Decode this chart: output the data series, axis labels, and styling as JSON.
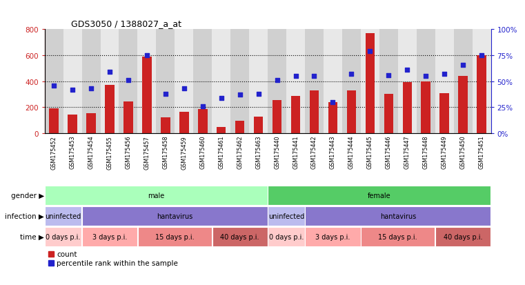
{
  "title": "GDS3050 / 1388027_a_at",
  "samples": [
    "GSM175452",
    "GSM175453",
    "GSM175454",
    "GSM175455",
    "GSM175456",
    "GSM175457",
    "GSM175458",
    "GSM175459",
    "GSM175460",
    "GSM175461",
    "GSM175462",
    "GSM175463",
    "GSM175440",
    "GSM175441",
    "GSM175442",
    "GSM175443",
    "GSM175444",
    "GSM175445",
    "GSM175446",
    "GSM175447",
    "GSM175448",
    "GSM175449",
    "GSM175450",
    "GSM175451"
  ],
  "counts": [
    190,
    145,
    155,
    370,
    245,
    590,
    120,
    165,
    185,
    50,
    95,
    125,
    255,
    285,
    330,
    240,
    330,
    770,
    305,
    395,
    400,
    310,
    440,
    600
  ],
  "percentiles": [
    46,
    42,
    43,
    59,
    51,
    75,
    38,
    43,
    26,
    34,
    37,
    38,
    51,
    55,
    55,
    30,
    57,
    79,
    56,
    61,
    55,
    57,
    66,
    75
  ],
  "bar_color": "#cc2222",
  "dot_color": "#2222cc",
  "left_ylim": [
    0,
    800
  ],
  "right_ylim": [
    0,
    100
  ],
  "left_yticks": [
    0,
    200,
    400,
    600,
    800
  ],
  "right_yticks": [
    0,
    25,
    50,
    75,
    100
  ],
  "right_yticklabels": [
    "0%",
    "25%",
    "50%",
    "75%",
    "100%"
  ],
  "grid_lines": [
    200,
    400,
    600
  ],
  "bg_color": "#e0e0e0",
  "col_bg_even": "#d0d0d0",
  "col_bg_odd": "#e8e8e8",
  "gender_segs": [
    {
      "start": 0,
      "end": 12,
      "color": "#aaffbb",
      "label": "male"
    },
    {
      "start": 12,
      "end": 24,
      "color": "#55cc66",
      "label": "female"
    }
  ],
  "infection_segs": [
    {
      "start": 0,
      "end": 2,
      "color": "#bbbbee",
      "label": "uninfected"
    },
    {
      "start": 2,
      "end": 12,
      "color": "#8877cc",
      "label": "hantavirus"
    },
    {
      "start": 12,
      "end": 14,
      "color": "#bbbbee",
      "label": "uninfected"
    },
    {
      "start": 14,
      "end": 24,
      "color": "#8877cc",
      "label": "hantavirus"
    }
  ],
  "time_segs": [
    {
      "start": 0,
      "end": 2,
      "label": "0 days p.i.",
      "color": "#ffcccc"
    },
    {
      "start": 2,
      "end": 5,
      "label": "3 days p.i.",
      "color": "#ffaaaa"
    },
    {
      "start": 5,
      "end": 9,
      "label": "15 days p.i.",
      "color": "#ee8888"
    },
    {
      "start": 9,
      "end": 12,
      "label": "40 days p.i.",
      "color": "#cc6666"
    },
    {
      "start": 12,
      "end": 14,
      "label": "0 days p.i.",
      "color": "#ffcccc"
    },
    {
      "start": 14,
      "end": 17,
      "label": "3 days p.i.",
      "color": "#ffaaaa"
    },
    {
      "start": 17,
      "end": 21,
      "label": "15 days p.i.",
      "color": "#ee8888"
    },
    {
      "start": 21,
      "end": 24,
      "label": "40 days p.i.",
      "color": "#cc6666"
    }
  ]
}
